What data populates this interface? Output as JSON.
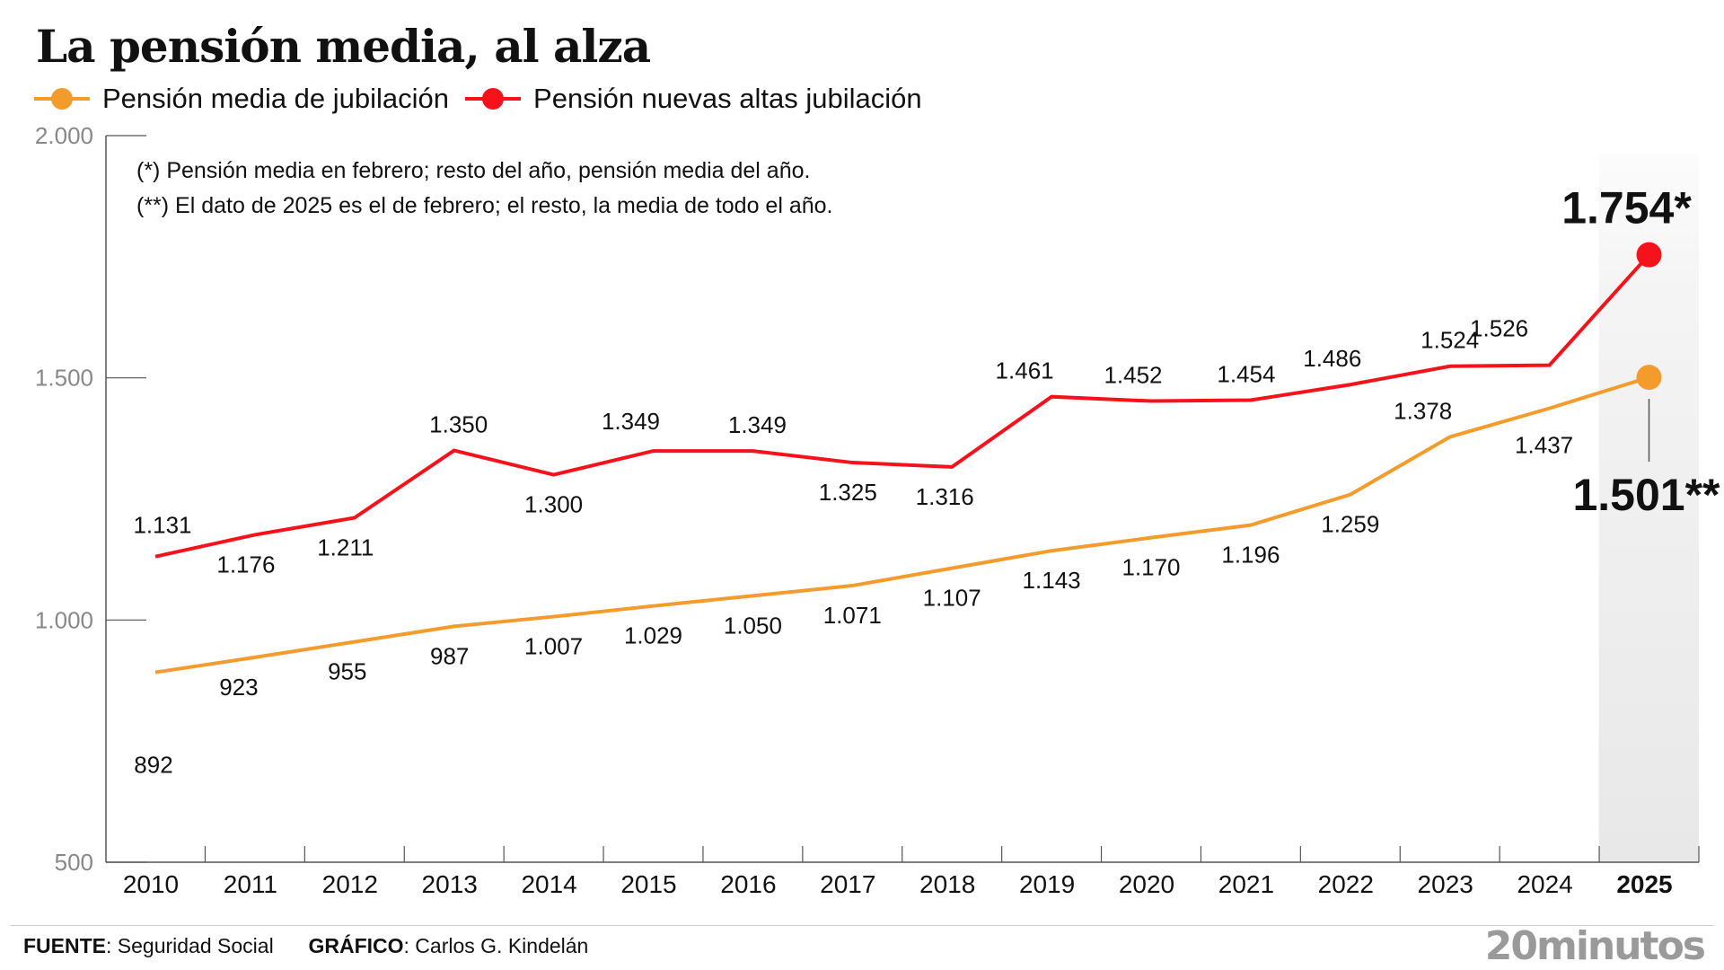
{
  "chart_data": {
    "type": "line",
    "title": "La pensión media, al alza",
    "x": [
      "2010",
      "2011",
      "2012",
      "2013",
      "2014",
      "2015",
      "2016",
      "2017",
      "2018",
      "2019",
      "2020",
      "2021",
      "2022",
      "2023",
      "2024",
      "2025"
    ],
    "series": [
      {
        "name": "Pensión media de jubilación",
        "color": "#f39c2c",
        "values": [
          892,
          923,
          955,
          987,
          1007,
          1029,
          1050,
          1071,
          1107,
          1143,
          1170,
          1196,
          1259,
          1378,
          1437,
          1501
        ],
        "labels": [
          "892",
          "923",
          "955",
          "987",
          "1.007",
          "1.029",
          "1.050",
          "1.071",
          "1.107",
          "1.143",
          "1.170",
          "1.196",
          "1.259",
          "1.378",
          "1.437",
          "1.501**"
        ]
      },
      {
        "name": "Pensión nuevas altas jubilación",
        "color": "#f5121a",
        "values": [
          1131,
          1176,
          1211,
          1350,
          1300,
          1349,
          1349,
          1325,
          1316,
          1461,
          1452,
          1454,
          1486,
          1524,
          1526,
          1754
        ],
        "labels": [
          "1.131",
          "1.176",
          "1.211",
          "1.350",
          "1.300",
          "1.349",
          "1.349",
          "1.325",
          "1.316",
          "1.461",
          "1.452",
          "1.454",
          "1.486",
          "1.524",
          "1.526",
          "1.754*"
        ]
      }
    ],
    "ylim": [
      500,
      2000
    ],
    "yticks": [
      500,
      1000,
      1500,
      2000
    ],
    "ytick_labels": [
      "500",
      "1.000",
      "1.500",
      "2.000"
    ],
    "highlight_category": "2025",
    "grid": false,
    "legend_position": "top-left",
    "notes": [
      "(*) Pensión media en febrero; resto del año, pensión media del año.",
      "(**) El dato de 2025 es el de febrero; el resto, la media de todo el año."
    ]
  },
  "footer": {
    "source_label": "FUENTE",
    "source": ": Seguridad Social",
    "graphic_label": "GRÁFICO",
    "graphic": ": Carlos G. Kindelán",
    "logo": "20minutos"
  }
}
